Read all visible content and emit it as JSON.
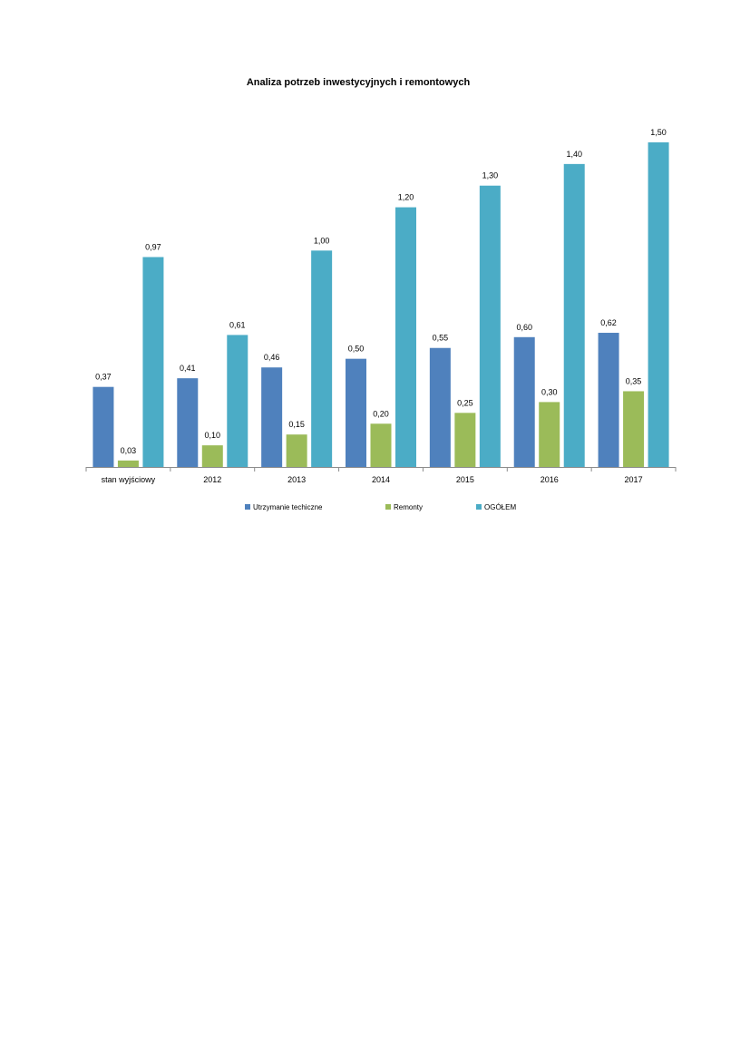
{
  "chart_data": {
    "type": "bar",
    "title": "Analiza potrzeb inwestycyjnych i  remontowych",
    "xlabel": "",
    "ylabel": "",
    "categories": [
      "stan wyjściowy",
      "2012",
      "2013",
      "2014",
      "2015",
      "2016",
      "2017"
    ],
    "series": [
      {
        "name": "Utrzymanie techiczne",
        "color": "#4F81BD",
        "values": [
          0.37,
          0.41,
          0.46,
          0.5,
          0.55,
          0.6,
          0.62
        ],
        "labels": [
          "0,37",
          "0,41",
          "0,46",
          "0,50",
          "0,55",
          "0,60",
          "0,62"
        ]
      },
      {
        "name": "Remonty",
        "color": "#9BBB59",
        "values": [
          0.03,
          0.1,
          0.15,
          0.2,
          0.25,
          0.3,
          0.35
        ],
        "labels": [
          "0,03",
          "0,10",
          "0,15",
          "0,20",
          "0,25",
          "0,30",
          "0,35"
        ]
      },
      {
        "name": "OGÓŁEM",
        "color": "#4BACC6",
        "values": [
          0.97,
          0.61,
          1.0,
          1.2,
          1.3,
          1.4,
          1.5
        ],
        "labels": [
          "0,97",
          "0,61",
          "1,00",
          "1,20",
          "1,30",
          "1,40",
          "1,50"
        ]
      }
    ],
    "ylim": [
      0,
      1.5
    ],
    "grid": false,
    "legend_position": "bottom"
  }
}
